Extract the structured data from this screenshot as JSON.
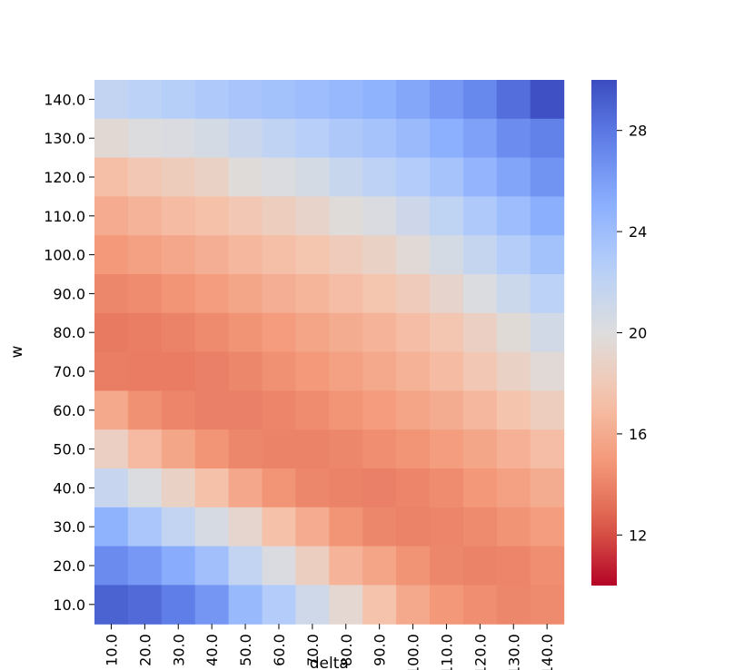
{
  "chart_data": {
    "type": "heatmap",
    "xlabel": "delta",
    "ylabel": "w",
    "x": [
      "10.0",
      "20.0",
      "30.0",
      "40.0",
      "50.0",
      "60.0",
      "70.0",
      "80.0",
      "90.0",
      "100.0",
      "110.0",
      "120.0",
      "130.0",
      "140.0"
    ],
    "y": [
      "140.0",
      "130.0",
      "120.0",
      "110.0",
      "100.0",
      "90.0",
      "80.0",
      "70.0",
      "60.0",
      "50.0",
      "40.0",
      "30.0",
      "20.0",
      "10.0"
    ],
    "values": [
      [
        21.8,
        22.2,
        22.6,
        23.0,
        23.4,
        23.7,
        24.0,
        24.4,
        24.8,
        25.5,
        26.3,
        27.2,
        28.4,
        29.8
      ],
      [
        19.5,
        20.1,
        20.3,
        20.6,
        21.3,
        21.9,
        22.5,
        23.1,
        23.5,
        24.2,
        25.0,
        25.8,
        26.9,
        27.5
      ],
      [
        17.2,
        17.8,
        18.3,
        18.8,
        19.8,
        20.2,
        20.6,
        21.4,
        22.1,
        22.8,
        23.5,
        24.6,
        25.6,
        26.6
      ],
      [
        16.0,
        16.5,
        17.0,
        17.3,
        17.8,
        18.4,
        19.0,
        19.8,
        20.3,
        21.1,
        22.0,
        23.0,
        24.0,
        25.1
      ],
      [
        15.0,
        15.4,
        15.8,
        16.2,
        16.7,
        17.2,
        17.6,
        18.2,
        18.8,
        19.6,
        20.6,
        21.6,
        22.7,
        23.7
      ],
      [
        14.2,
        14.4,
        14.8,
        15.2,
        15.7,
        16.2,
        16.6,
        17.1,
        17.6,
        18.2,
        19.1,
        20.2,
        21.2,
        22.2
      ],
      [
        13.6,
        13.8,
        14.0,
        14.3,
        14.7,
        15.1,
        15.6,
        16.1,
        16.5,
        17.1,
        17.7,
        18.6,
        19.7,
        20.8
      ],
      [
        13.8,
        13.7,
        13.7,
        13.9,
        14.2,
        14.6,
        15.0,
        15.4,
        15.9,
        16.4,
        17.0,
        17.8,
        18.8,
        19.6
      ],
      [
        15.9,
        14.6,
        14.1,
        13.9,
        13.9,
        14.1,
        14.4,
        14.8,
        15.1,
        15.6,
        16.1,
        16.7,
        17.5,
        18.4
      ],
      [
        18.6,
        16.9,
        15.7,
        14.8,
        14.2,
        14.0,
        14.0,
        14.2,
        14.5,
        14.8,
        15.2,
        15.7,
        16.3,
        17.1
      ],
      [
        21.5,
        20.2,
        18.8,
        17.3,
        15.8,
        14.8,
        14.2,
        14.0,
        13.9,
        14.1,
        14.4,
        14.9,
        15.4,
        16.1
      ],
      [
        24.8,
        23.3,
        21.8,
        20.5,
        19.2,
        17.3,
        16.0,
        14.8,
        14.2,
        14.0,
        14.1,
        14.3,
        14.7,
        15.2
      ],
      [
        27.0,
        26.3,
        25.2,
        23.8,
        21.8,
        20.3,
        18.5,
        16.5,
        15.6,
        14.7,
        14.2,
        14.0,
        14.1,
        14.5
      ],
      [
        29.0,
        28.6,
        27.7,
        26.4,
        24.3,
        22.8,
        21.0,
        19.3,
        17.4,
        15.9,
        14.9,
        14.5,
        14.2,
        14.3
      ]
    ],
    "colorbar": {
      "colormap": "coolwarm",
      "range": [
        10.0,
        30.0
      ],
      "ticks": [
        "12",
        "16",
        "20",
        "24",
        "28"
      ]
    },
    "grid": false,
    "legend": "colorbar-right"
  }
}
